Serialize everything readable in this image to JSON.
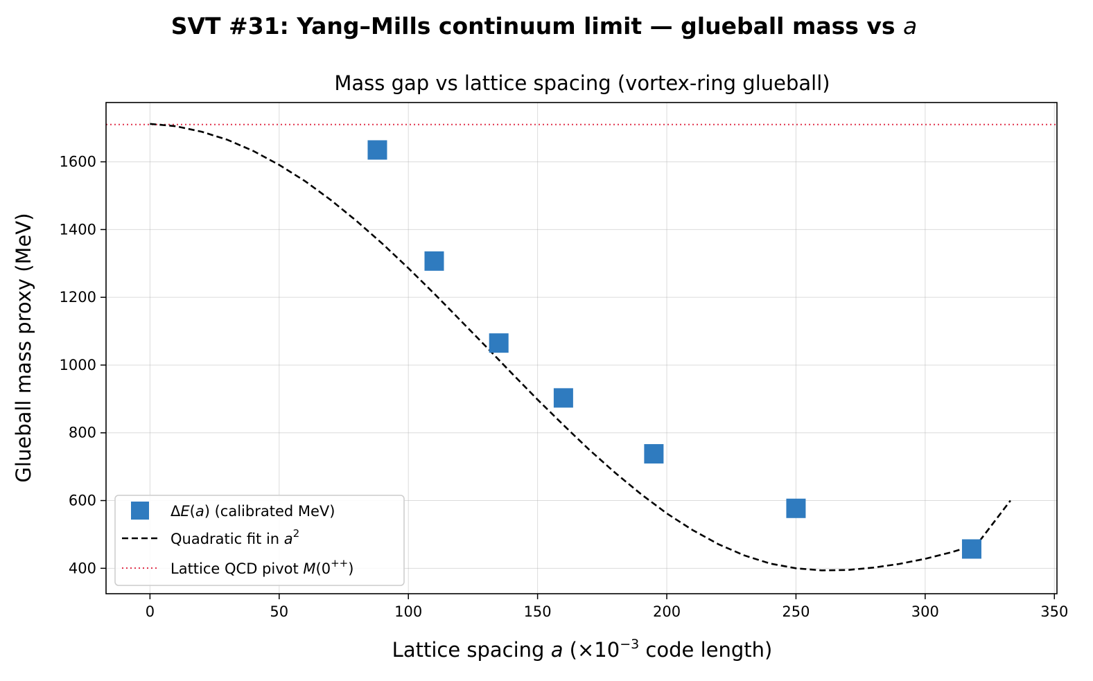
{
  "chart_data": {
    "type": "scatter",
    "suptitle": {
      "main": "SVT #31: Yang–Mills continuum limit — glueball mass vs ",
      "var": "a"
    },
    "title": "Mass gap vs lattice spacing (vortex-ring glueball)",
    "xlabel": {
      "pre": "Lattice spacing ",
      "var": "a",
      "mid": "  (×10",
      "sup": "−3",
      "post": " code length)"
    },
    "ylabel": "Glueball mass proxy  (MeV)",
    "xlim": [
      -17,
      351
    ],
    "ylim": [
      325,
      1775
    ],
    "xticks": [
      0,
      50,
      100,
      150,
      200,
      250,
      300,
      350
    ],
    "yticks": [
      400,
      600,
      800,
      1000,
      1200,
      1400,
      1600
    ],
    "grid": true,
    "legend_placement": "lower-left",
    "series": [
      {
        "name": "ΔE(a)  (calibrated MeV)",
        "legend": {
          "pre": "Δ",
          "var": "E",
          "mid": "(",
          "var2": "a",
          "post": ")  (calibrated MeV)"
        },
        "kind": "scatter",
        "marker": "square",
        "color": "#2f7bbf",
        "x": [
          88,
          110,
          135,
          160,
          195,
          250,
          318
        ],
        "y": [
          1635,
          1307,
          1065,
          903,
          738,
          577,
          457
        ]
      },
      {
        "name": "Quadratic fit in a²",
        "legend": {
          "pre": "Quadratic fit in ",
          "var": "a",
          "sup": "2"
        },
        "kind": "line",
        "style": "dashed",
        "color": "#000000",
        "x": [
          0,
          10,
          20,
          30,
          40,
          50,
          60,
          70,
          80,
          90,
          100,
          110,
          120,
          130,
          140,
          150,
          160,
          170,
          180,
          190,
          200,
          210,
          220,
          230,
          240,
          250,
          260,
          270,
          280,
          290,
          300,
          310,
          320,
          333
        ],
        "y": [
          1712,
          1705,
          1689,
          1665,
          1632,
          1591,
          1543,
          1487,
          1425,
          1358,
          1286,
          1211,
          1133,
          1055,
          976,
          898,
          823,
          750,
          682,
          619,
          562,
          513,
          471,
          438,
          414,
          400,
          394,
          395,
          402,
          413,
          428,
          447,
          470,
          600
        ]
      },
      {
        "name": "Lattice QCD pivot  M(0⁺⁺)",
        "legend": {
          "pre": "Lattice QCD pivot  ",
          "var": "M",
          "mid": "(0",
          "sup": "++",
          "post": ")"
        },
        "kind": "hline",
        "style": "dotted",
        "color": "#e0304a",
        "y": 1710
      }
    ]
  }
}
